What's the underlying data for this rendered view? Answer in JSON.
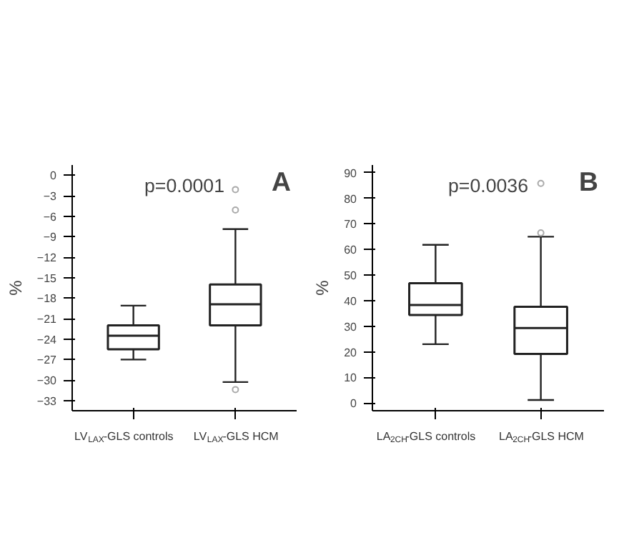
{
  "chart_data": [
    {
      "type": "box",
      "ylabel": "%",
      "categories": [
        "LV$_{LAX}$-GLS controls",
        "LV$_{LAX}$-GLS HCM"
      ],
      "boxes": [
        {
          "low": -27,
          "q1": -25.5,
          "median": -23.5,
          "q3": -22,
          "high": -19.1
        },
        {
          "low": -30.3,
          "q1": -22,
          "median": -18.9,
          "q3": -16,
          "high": -7.9,
          "outliers": [
            -2.1,
            -5.1,
            -31.4
          ]
        }
      ],
      "ylim": [
        -34.5,
        1.5
      ],
      "yticks": [
        0,
        -3,
        -6,
        -9,
        -12,
        -15,
        -18,
        -21,
        -24,
        -27,
        -30,
        -33
      ],
      "annotations": [
        "p=0.0001",
        "A"
      ]
    },
    {
      "type": "box",
      "ylabel": "%",
      "categories": [
        "LA$_{2CH}$-GLS controls",
        "LA$_{2CH}$-GLS HCM"
      ],
      "boxes": [
        {
          "low": 23,
          "q1": 34.4,
          "median": 38.3,
          "q3": 46.8,
          "high": 61.8
        },
        {
          "low": 1.2,
          "q1": 19.2,
          "median": 29.3,
          "q3": 37.6,
          "high": 65,
          "outliers": [
            66.5,
            85.8
          ]
        }
      ],
      "ylim": [
        -3,
        93
      ],
      "yticks": [
        0,
        10,
        20,
        30,
        40,
        50,
        60,
        70,
        80,
        90
      ],
      "annotations": [
        "p=0.0036",
        "B"
      ]
    }
  ]
}
